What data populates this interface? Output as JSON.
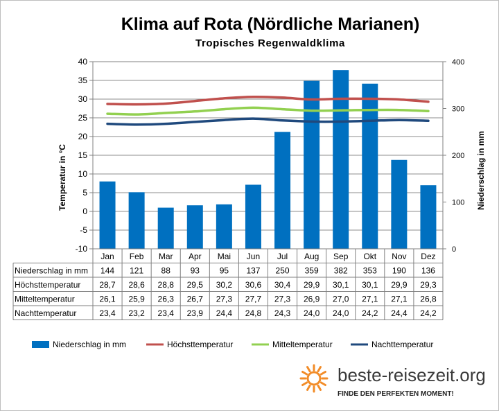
{
  "chart_data": {
    "type": "bar",
    "title": "Klima auf Rota (Nördliche Marianen)",
    "subtitle": "Tropisches Regenwaldklima",
    "categories": [
      "Jan",
      "Feb",
      "Mar",
      "Apr",
      "Mai",
      "Jun",
      "Jul",
      "Aug",
      "Sep",
      "Okt",
      "Nov",
      "Dez"
    ],
    "ylabel_left": "Temperatur in °C",
    "ylabel_right": "Niederschlag in mm",
    "ylim_left": [
      -10,
      40
    ],
    "yticks_left": [
      -10,
      -5,
      0,
      5,
      10,
      15,
      20,
      25,
      30,
      35,
      40
    ],
    "ylim_right": [
      0,
      400
    ],
    "yticks_right": [
      0,
      100,
      200,
      300,
      400
    ],
    "grid": true,
    "legend_position": "bottom",
    "series": [
      {
        "name": "Niederschlag in mm",
        "kind": "bar",
        "axis": "right",
        "color": "#0070c0",
        "values": [
          144,
          121,
          88,
          93,
          95,
          137,
          250,
          359,
          382,
          353,
          190,
          136
        ],
        "labels": [
          "144",
          "121",
          "88",
          "93",
          "95",
          "137",
          "250",
          "359",
          "382",
          "353",
          "190",
          "136"
        ]
      },
      {
        "name": "Höchsttemperatur",
        "kind": "line",
        "axis": "left",
        "color": "#c0504d",
        "values": [
          28.7,
          28.6,
          28.8,
          29.5,
          30.2,
          30.6,
          30.4,
          29.9,
          30.1,
          30.1,
          29.9,
          29.3
        ],
        "labels": [
          "28,7",
          "28,6",
          "28,8",
          "29,5",
          "30,2",
          "30,6",
          "30,4",
          "29,9",
          "30,1",
          "30,1",
          "29,9",
          "29,3"
        ]
      },
      {
        "name": "Mitteltemperatur",
        "kind": "line",
        "axis": "left",
        "color": "#92d050",
        "values": [
          26.1,
          25.9,
          26.3,
          26.7,
          27.3,
          27.7,
          27.3,
          26.9,
          27.0,
          27.1,
          27.1,
          26.8
        ],
        "labels": [
          "26,1",
          "25,9",
          "26,3",
          "26,7",
          "27,3",
          "27,7",
          "27,3",
          "26,9",
          "27,0",
          "27,1",
          "27,1",
          "26,8"
        ]
      },
      {
        "name": "Nachttemperatur",
        "kind": "line",
        "axis": "left",
        "color": "#1f497d",
        "values": [
          23.4,
          23.2,
          23.4,
          23.9,
          24.4,
          24.8,
          24.3,
          24.0,
          24.0,
          24.2,
          24.4,
          24.2
        ],
        "labels": [
          "23,4",
          "23,2",
          "23,4",
          "23,9",
          "24,4",
          "24,8",
          "24,3",
          "24,0",
          "24,0",
          "24,2",
          "24,4",
          "24,2"
        ]
      }
    ]
  },
  "branding": {
    "site": "beste-reisezeit.org",
    "tagline": "FINDE DEN PERFEKTEN MOMENT!",
    "logo_icon": "sun-icon",
    "logo_color": "#f28c28"
  }
}
